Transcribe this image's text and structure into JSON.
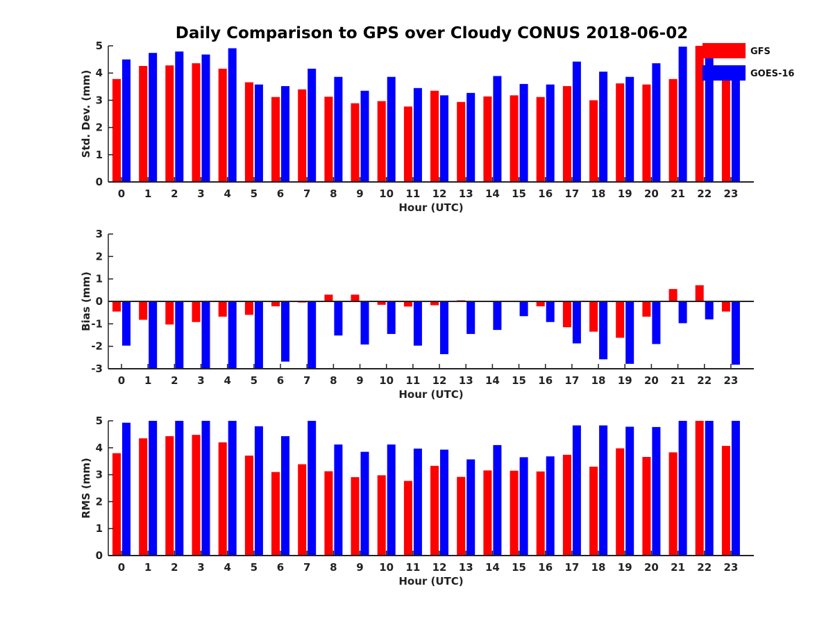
{
  "chart_data": {
    "title": "Daily Comparison to GPS over Cloudy CONUS 2018-06-02",
    "type": "bar",
    "categories": [
      "0",
      "1",
      "2",
      "3",
      "4",
      "5",
      "6",
      "7",
      "8",
      "9",
      "10",
      "11",
      "12",
      "13",
      "14",
      "15",
      "16",
      "17",
      "18",
      "19",
      "20",
      "21",
      "22",
      "23"
    ],
    "legend": {
      "position": "top-right",
      "entries": [
        {
          "name": "GFS",
          "color": "#ff0000"
        },
        {
          "name": "GOES-16",
          "color": "#0000ff"
        }
      ]
    },
    "panels": [
      {
        "ylabel": "Std. Dev. (mm)",
        "xlabel": "Hour (UTC)",
        "ylim": [
          0,
          5
        ],
        "yticks": [
          "0",
          "1",
          "2",
          "3",
          "4",
          "5"
        ],
        "series": [
          {
            "name": "GFS",
            "values": [
              3.78,
              4.26,
              4.28,
              4.36,
              4.16,
              3.66,
              3.12,
              3.4,
              3.13,
              2.89,
              2.97,
              2.77,
              3.35,
              2.94,
              3.14,
              3.18,
              3.12,
              3.52,
              3.0,
              3.62,
              3.58,
              3.78,
              5.0,
              3.8
            ]
          },
          {
            "name": "GOES-16",
            "values": [
              4.5,
              4.74,
              4.79,
              4.68,
              4.91,
              3.58,
              3.52,
              4.16,
              3.86,
              3.35,
              3.86,
              3.45,
              3.18,
              3.27,
              3.89,
              3.6,
              3.58,
              4.42,
              4.05,
              3.86,
              4.36,
              4.97,
              4.97,
              3.85
            ]
          }
        ]
      },
      {
        "ylabel": "Bias (mm)",
        "xlabel": "Hour (UTC)",
        "ylim": [
          -3,
          3
        ],
        "yticks": [
          "-3",
          "-2",
          "-1",
          "0",
          "1",
          "2",
          "3"
        ],
        "series": [
          {
            "name": "GFS",
            "values": [
              -0.45,
              -0.82,
              -1.03,
              -0.92,
              -0.68,
              -0.6,
              -0.22,
              -0.05,
              0.3,
              0.3,
              -0.15,
              -0.23,
              -0.17,
              0.05,
              0.03,
              -0.02,
              -0.22,
              -1.15,
              -1.35,
              -1.62,
              -0.68,
              0.55,
              0.72,
              -0.45
            ]
          },
          {
            "name": "GOES-16",
            "values": [
              -1.97,
              -3.0,
              -3.0,
              -3.0,
              -3.0,
              -3.0,
              -2.68,
              -3.0,
              -1.52,
              -1.92,
              -1.45,
              -1.97,
              -2.35,
              -1.45,
              -1.27,
              -0.66,
              -0.92,
              -1.87,
              -2.58,
              -2.78,
              -1.9,
              -0.97,
              -0.8,
              -2.82
            ]
          }
        ]
      },
      {
        "ylabel": "RMS (mm)",
        "xlabel": "Hour (UTC)",
        "ylim": [
          0,
          5
        ],
        "yticks": [
          "0",
          "1",
          "2",
          "3",
          "4",
          "5"
        ],
        "series": [
          {
            "name": "GFS",
            "values": [
              3.8,
              4.35,
              4.43,
              4.48,
              4.2,
              3.71,
              3.1,
              3.39,
              3.13,
              2.91,
              2.98,
              2.77,
              3.33,
              2.92,
              3.16,
              3.15,
              3.12,
              3.74,
              3.3,
              3.98,
              3.66,
              3.83,
              5.0,
              4.07
            ]
          },
          {
            "name": "GOES-16",
            "values": [
              4.93,
              5.0,
              5.0,
              5.0,
              5.0,
              4.8,
              4.43,
              5.0,
              4.12,
              3.85,
              4.12,
              3.97,
              3.93,
              3.57,
              4.1,
              3.65,
              3.68,
              4.83,
              4.83,
              4.78,
              4.77,
              5.0,
              5.0,
              5.0
            ]
          }
        ]
      }
    ]
  }
}
